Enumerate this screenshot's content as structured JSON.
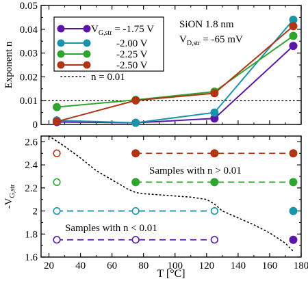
{
  "colors": {
    "purple": "#5b16a8",
    "teal": "#1a94a8",
    "green": "#2ea52e",
    "red": "#b03515",
    "black": "#000000"
  },
  "chart_data": [
    {
      "type": "line",
      "panel": "top",
      "ylabel": "Exponent n",
      "xlim": [
        15,
        180
      ],
      "ylim": [
        0,
        0.05
      ],
      "xticks": [
        20,
        40,
        60,
        80,
        100,
        120,
        140,
        160,
        180
      ],
      "yticks": [
        0,
        0.01,
        0.02,
        0.03,
        0.04,
        0.05
      ],
      "ytick_labels": [
        "0",
        "0.01",
        "0.02",
        "0.03",
        "0.04",
        "0.05"
      ],
      "annotation": {
        "line1": "SiON 1.8 nm",
        "line2_main": "V",
        "line2_sub": "D,str",
        "line2_rest": " = -65 mV"
      },
      "legend": {
        "position": "top-left"
      },
      "series": [
        {
          "name": "-1.75 V",
          "legend_main": "V",
          "legend_sub": "G,str",
          "legend_rest": " = -1.75 V",
          "color_key": "purple",
          "x": [
            25,
            75,
            125,
            175
          ],
          "y": [
            0.001,
            0.0007,
            0.0025,
            0.033
          ]
        },
        {
          "name": "-2.00 V",
          "legend_rest": "-2.00 V",
          "color_key": "teal",
          "x": [
            25,
            75,
            125,
            175
          ],
          "y": [
            0.0017,
            0.0007,
            0.005,
            0.044
          ]
        },
        {
          "name": "-2.25 V",
          "legend_rest": "-2.25 V",
          "color_key": "green",
          "x": [
            25,
            75,
            125,
            175
          ],
          "y": [
            0.0073,
            0.0103,
            0.0138,
            0.0372
          ]
        },
        {
          "name": "-2.50 V",
          "legend_rest": "-2.50 V",
          "color_key": "red",
          "x": [
            25,
            75,
            125,
            175
          ],
          "y": [
            0.0012,
            0.0101,
            0.0131,
            0.0413
          ]
        }
      ],
      "reference_line": {
        "name": "n = 0.01",
        "y": 0.01,
        "style": "dotted"
      }
    },
    {
      "type": "scatter",
      "panel": "bottom",
      "xlabel": "T [°C]",
      "ylabel_main": "-V",
      "ylabel_sub": "G,str",
      "xlim": [
        15,
        180
      ],
      "ylim": [
        1.6,
        2.65
      ],
      "xticks": [
        20,
        40,
        60,
        80,
        100,
        120,
        140,
        160,
        180
      ],
      "yticks": [
        1.6,
        1.8,
        2.0,
        2.2,
        2.4,
        2.6
      ],
      "ytick_labels": [
        "1.6",
        "1.8",
        "2",
        "2.2",
        "2.4",
        "2.6"
      ],
      "annotations": [
        "Samples with n > 0.01",
        "Samples with n < 0.01"
      ],
      "rows": [
        {
          "y": 2.5,
          "color_key": "red",
          "open_x": [
            25
          ],
          "filled_x": [
            75,
            125,
            175
          ],
          "dashed_x": [
            75,
            175
          ]
        },
        {
          "y": 2.25,
          "color_key": "green",
          "open_x": [
            25
          ],
          "filled_x": [
            75,
            125,
            175
          ],
          "dashed_x": [
            75,
            175
          ]
        },
        {
          "y": 2.0,
          "color_key": "teal",
          "open_x": [
            25,
            75,
            125
          ],
          "filled_x": [
            175
          ],
          "dashed_x": [
            25,
            125
          ]
        },
        {
          "y": 1.75,
          "color_key": "purple",
          "open_x": [
            25,
            75,
            125
          ],
          "filled_x": [
            175
          ],
          "dashed_x": [
            25,
            125
          ]
        }
      ],
      "boundary_line": {
        "style": "dotted",
        "x": [
          20,
          30,
          40,
          50,
          60,
          70,
          75,
          80,
          90,
          100,
          110,
          120,
          125,
          130,
          140,
          150,
          160,
          170,
          175
        ],
        "y": [
          2.65,
          2.56,
          2.46,
          2.35,
          2.27,
          2.19,
          2.16,
          2.15,
          2.14,
          2.13,
          2.12,
          2.1,
          2.06,
          2.0,
          1.94,
          1.88,
          1.81,
          1.72,
          1.65
        ]
      }
    }
  ]
}
